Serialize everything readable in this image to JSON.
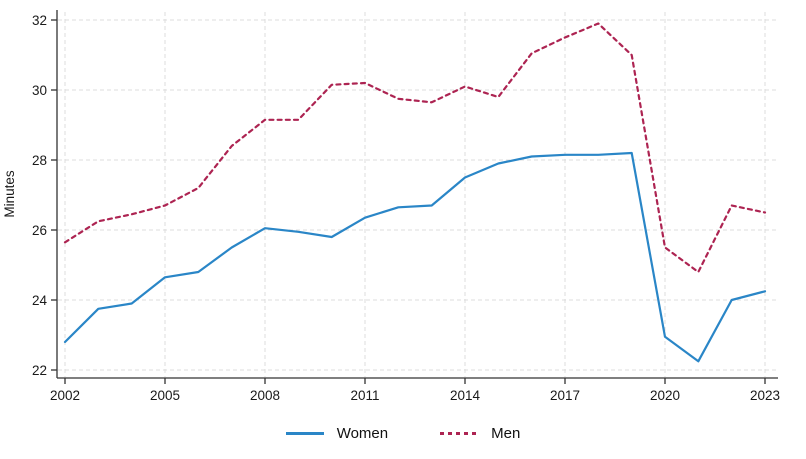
{
  "chart_data": {
    "type": "line",
    "title": "",
    "xlabel": "",
    "ylabel": "Minutes",
    "x": [
      2002,
      2003,
      2004,
      2005,
      2006,
      2007,
      2008,
      2009,
      2010,
      2011,
      2012,
      2013,
      2014,
      2015,
      2016,
      2017,
      2018,
      2019,
      2020,
      2021,
      2022,
      2023
    ],
    "xticks": [
      2002,
      2005,
      2008,
      2011,
      2014,
      2017,
      2020,
      2023
    ],
    "yticks": [
      22,
      24,
      26,
      28,
      30,
      32
    ],
    "xlim": [
      2002,
      2023
    ],
    "ylim": [
      22,
      32
    ],
    "grid": true,
    "legend_position": "bottom",
    "series": [
      {
        "name": "Women",
        "style": "solid",
        "color": "#2a86c7",
        "values": [
          22.8,
          23.75,
          23.9,
          24.65,
          24.8,
          25.5,
          26.05,
          25.95,
          25.8,
          26.35,
          26.65,
          26.7,
          27.5,
          27.9,
          28.1,
          28.15,
          28.15,
          28.2,
          22.95,
          22.25,
          24.0,
          24.25
        ]
      },
      {
        "name": "Men",
        "style": "dashed",
        "color": "#ad2452",
        "values": [
          25.65,
          26.25,
          26.45,
          26.7,
          27.2,
          28.4,
          29.15,
          29.15,
          30.15,
          30.2,
          29.75,
          29.65,
          30.1,
          29.8,
          31.05,
          31.5,
          31.9,
          31.0,
          25.5,
          24.8,
          26.7,
          26.5
        ]
      }
    ],
    "colors": {
      "axis": "#333333",
      "grid": "#dcdcdc",
      "tick_label": "#1a1a1a"
    }
  }
}
